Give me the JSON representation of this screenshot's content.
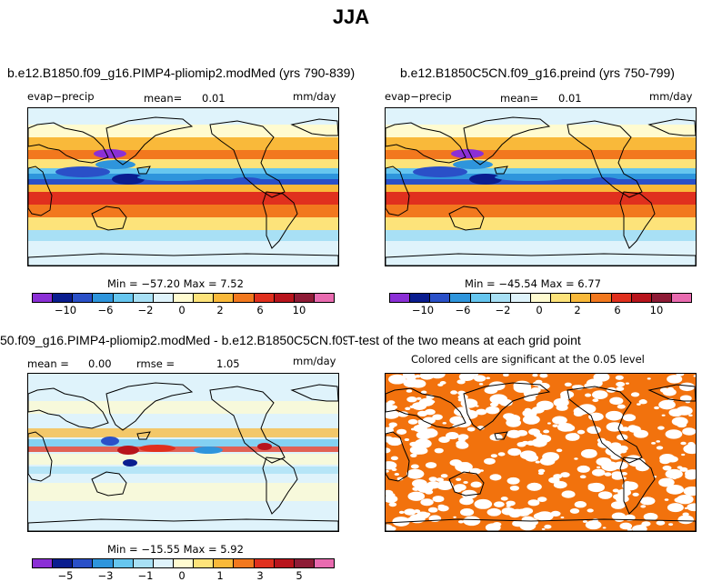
{
  "figure": {
    "title": "JJA"
  },
  "panels": [
    {
      "title": "b.e12.B1850.f09_g16.PIMP4-pliomip2.modMed (yrs 790-839)",
      "variable": "evap−precip",
      "mean_label": "mean=",
      "mean_value": "0.01",
      "units": "mm/day",
      "minmax": "Min = −57.20 Max =    7.52",
      "colorbar_ticks": [
        "−10",
        "−6",
        "−2",
        "0",
        "2",
        "6",
        "10"
      ]
    },
    {
      "title": "b.e12.B1850C5CN.f09_g16.preind (yrs 750-799)",
      "variable": "evap−precip",
      "mean_label": "mean=",
      "mean_value": "0.01",
      "units": "mm/day",
      "minmax": "Min = −45.54 Max =    6.77",
      "colorbar_ticks": [
        "−10",
        "−6",
        "−2",
        "0",
        "2",
        "6",
        "10"
      ]
    },
    {
      "title": "50.f09_g16.PIMP4-pliomip2.modMed - b.e12.B1850C5CN.f09_g16.preind",
      "mean_label": "mean =",
      "mean_value": "0.00",
      "rmse_label": "rmse =",
      "rmse_value": "1.05",
      "units": "mm/day",
      "minmax": "Min = −15.55 Max =    5.92",
      "colorbar_ticks": [
        "−5",
        "−3",
        "−1",
        "0",
        "1",
        "3",
        "5"
      ]
    },
    {
      "title": "T-test of the two means at each grid point",
      "subtitle": "Colored cells are significant at the 0.05 level"
    }
  ],
  "colors": {
    "scale": [
      "#8b2fd6",
      "#0a1d8f",
      "#2a50c8",
      "#2e95dc",
      "#66c6ef",
      "#a8e0f5",
      "#dff3fb",
      "#fffbd0",
      "#fde37a",
      "#f9b93a",
      "#f2781e",
      "#e0301e",
      "#b8141c",
      "#8e1b36",
      "#e96bb0"
    ],
    "significant": "#f2720d"
  }
}
